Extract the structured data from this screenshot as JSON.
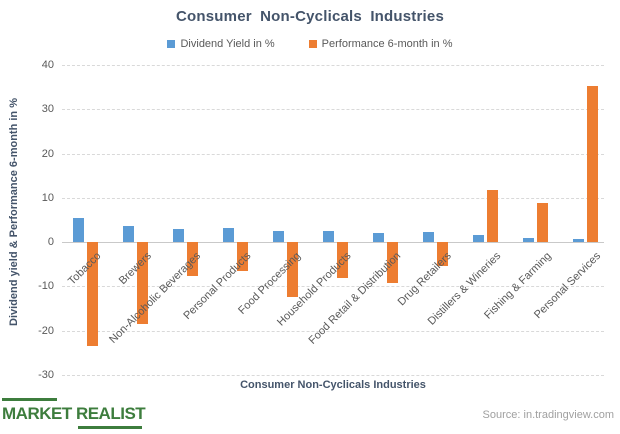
{
  "chart_data": {
    "type": "bar",
    "title": "Consumer Non-Cyclicals Industries",
    "xlabel": "Consumer Non-Cyclicals Industries",
    "ylabel": "Dividend yield & Performance 6-month in %",
    "ylim": [
      -30,
      40
    ],
    "yticks": [
      40,
      30,
      20,
      10,
      0,
      -10,
      -20,
      -30
    ],
    "grid": "horizontal-dashed",
    "legend_position": "top",
    "categories": [
      "Tobacco",
      "Brewers",
      "Non-Alcoholic Beverages",
      "Personal Products",
      "Food Processing",
      "Household Products",
      "Food Retail & Distribution",
      "Drug Retailers",
      "Distillers & Wineries",
      "Fishing & Farming",
      "Personal Services"
    ],
    "series": [
      {
        "name": "Dividend Yield in %",
        "color": "#5B9BD5",
        "values": [
          5.4,
          3.7,
          3.0,
          3.1,
          2.5,
          2.6,
          2.1,
          2.2,
          1.6,
          0.9,
          0.6
        ]
      },
      {
        "name": "Performance 6-month in %",
        "color": "#ED7D31",
        "values": [
          -23.5,
          -18.5,
          -7.7,
          -6.6,
          -12.3,
          -8.0,
          -9.2,
          -5.5,
          11.8,
          8.9,
          35.2
        ]
      }
    ]
  },
  "branding": {
    "logo_text": "MARKET REALIST",
    "logo_color": "#3d7d3d"
  },
  "source": {
    "text": "Source: in.tradingview.com"
  }
}
